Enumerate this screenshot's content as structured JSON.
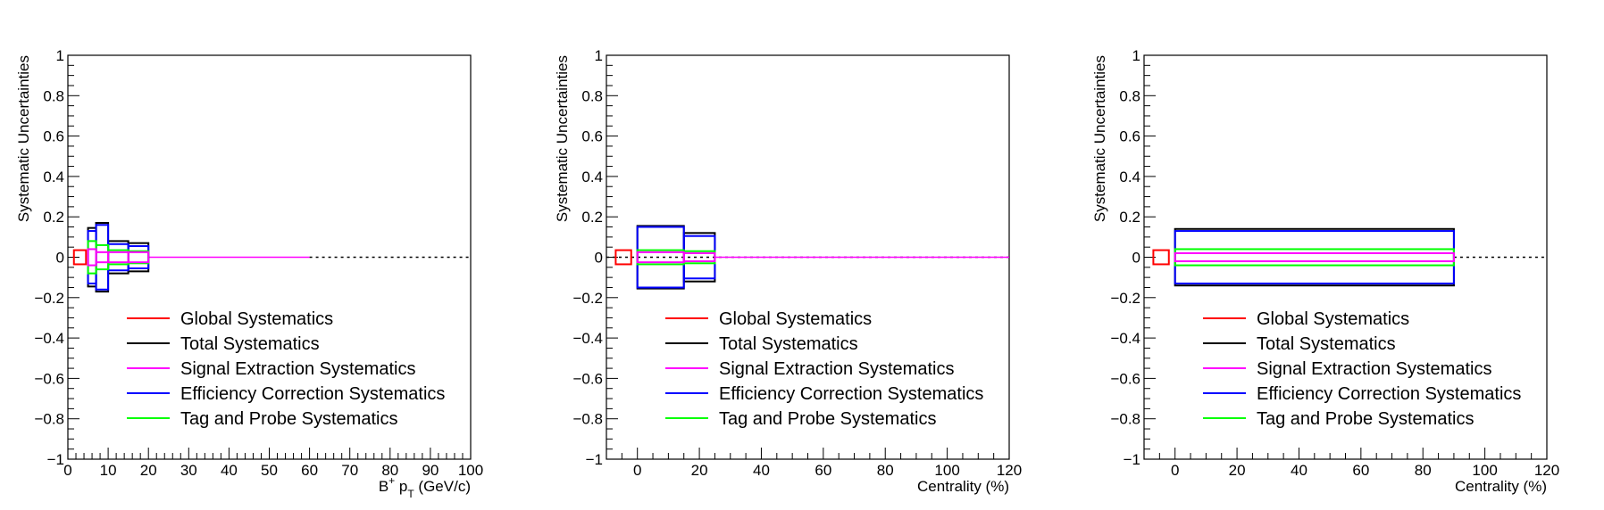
{
  "colors": {
    "global": "#ff0000",
    "total": "#000000",
    "signal": "#ff00ff",
    "efficiency": "#0000ff",
    "tagprobe": "#00ff00"
  },
  "legend": [
    {
      "key": "global",
      "label": "Global Systematics"
    },
    {
      "key": "total",
      "label": "Total Systematics"
    },
    {
      "key": "signal",
      "label": "Signal Extraction Systematics"
    },
    {
      "key": "efficiency",
      "label": "Efficiency Correction Systematics"
    },
    {
      "key": "tagprobe",
      "label": "Tag and Probe Systematics"
    }
  ],
  "chart_data": [
    {
      "type": "bar",
      "xlabel": "B+ pT (GeV/c)",
      "xlabel_parts": {
        "main": "B",
        "sup": "+",
        "mid": " p",
        "sub": "T",
        "unit": " (GeV/c)"
      },
      "ylabel": "Systematic Uncertainties",
      "xlim": [
        0,
        100
      ],
      "ylim": [
        -1,
        1
      ],
      "xticks": [
        "0",
        "10",
        "20",
        "30",
        "40",
        "50",
        "60",
        "70",
        "80",
        "90",
        "100"
      ],
      "yticks": [
        "1",
        "0.8",
        "0.6",
        "0.4",
        "0.2",
        "0",
        "−0.2",
        "−0.4",
        "−0.6",
        "−0.8",
        "−1"
      ],
      "legend_position": "bottom-center",
      "global_box": {
        "x": [
          1.5,
          4.5
        ],
        "y": [
          -0.035,
          0.035
        ]
      },
      "bins": [
        [
          5,
          7
        ],
        [
          7,
          10
        ],
        [
          10,
          15
        ],
        [
          15,
          20
        ]
      ],
      "series": [
        {
          "key": "total",
          "values": [
            0.145,
            0.17,
            0.08,
            0.07
          ]
        },
        {
          "key": "efficiency",
          "values": [
            0.13,
            0.16,
            0.065,
            0.055
          ]
        },
        {
          "key": "tagprobe",
          "values": [
            0.08,
            0.06,
            0.035,
            0.03
          ]
        },
        {
          "key": "signal",
          "values": [
            0.04,
            0.025,
            0.025,
            0.025
          ]
        }
      ],
      "signal_zero_range": [
        20,
        60
      ],
      "zero_line_range": [
        60,
        100
      ]
    },
    {
      "type": "bar",
      "xlabel": "Centrality (%)",
      "ylabel": "Systematic Uncertainties",
      "xlim": [
        -10,
        120
      ],
      "ylim": [
        -1,
        1
      ],
      "xticks": [
        "0",
        "20",
        "40",
        "60",
        "80",
        "100",
        "120"
      ],
      "yticks": [
        "1",
        "0.8",
        "0.6",
        "0.4",
        "0.2",
        "0",
        "−0.2",
        "−0.4",
        "−0.6",
        "−0.8",
        "−1"
      ],
      "legend_position": "bottom-center",
      "global_box": {
        "x": [
          -7,
          -2
        ],
        "y": [
          -0.035,
          0.035
        ]
      },
      "bins": [
        [
          0,
          15
        ],
        [
          15,
          25
        ]
      ],
      "series": [
        {
          "key": "total",
          "values": [
            0.155,
            0.12
          ]
        },
        {
          "key": "efficiency",
          "values": [
            0.15,
            0.105
          ]
        },
        {
          "key": "tagprobe",
          "values": [
            0.035,
            0.03
          ]
        },
        {
          "key": "signal",
          "values": [
            0.025,
            0.02
          ]
        }
      ],
      "signal_zero_range": [
        25,
        120
      ],
      "zero_line_range": [
        -10,
        120
      ]
    },
    {
      "type": "bar",
      "xlabel": "Centrality (%)",
      "ylabel": "Systematic Uncertainties",
      "xlim": [
        -10,
        120
      ],
      "ylim": [
        -1,
        1
      ],
      "xticks": [
        "0",
        "20",
        "40",
        "60",
        "80",
        "100",
        "120"
      ],
      "yticks": [
        "1",
        "0.8",
        "0.6",
        "0.4",
        "0.2",
        "0",
        "−0.2",
        "−0.4",
        "−0.6",
        "−0.8",
        "−1"
      ],
      "legend_position": "bottom-center",
      "global_box": {
        "x": [
          -7,
          -2
        ],
        "y": [
          -0.035,
          0.035
        ]
      },
      "bins": [
        [
          0,
          90
        ]
      ],
      "series": [
        {
          "key": "total",
          "values": [
            0.14
          ]
        },
        {
          "key": "efficiency",
          "values": [
            0.13
          ]
        },
        {
          "key": "tagprobe",
          "values": [
            0.04
          ]
        },
        {
          "key": "signal",
          "values": [
            0.02
          ]
        }
      ],
      "signal_zero_range": [
        90,
        90
      ],
      "zero_line_range": [
        90,
        120
      ]
    }
  ]
}
